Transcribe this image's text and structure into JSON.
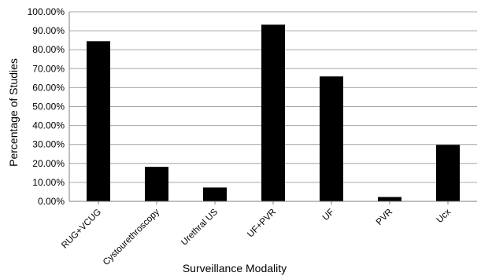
{
  "chart_data": {
    "type": "bar",
    "title": "",
    "xlabel": "Surveillance Modality",
    "ylabel": "Percentage of Studies",
    "ylim": [
      0,
      100
    ],
    "y_ticks": [
      "0.00%",
      "10.00%",
      "20.00%",
      "30.00%",
      "40.00%",
      "50.00%",
      "60.00%",
      "70.00%",
      "80.00%",
      "90.00%",
      "100.00%"
    ],
    "categories": [
      "RUG+VCUG",
      "Cystourethroscopy",
      "Urethral US",
      "UF+PVR",
      "UF",
      "PVR",
      "Ucx"
    ],
    "values": [
      84.5,
      18.2,
      7.3,
      93.2,
      65.9,
      2.3,
      29.8
    ],
    "grid": true,
    "legend": "none",
    "colors": {
      "bar": "#000000",
      "grid": "#a6a6a6",
      "axis": "#7f7f7f"
    }
  }
}
